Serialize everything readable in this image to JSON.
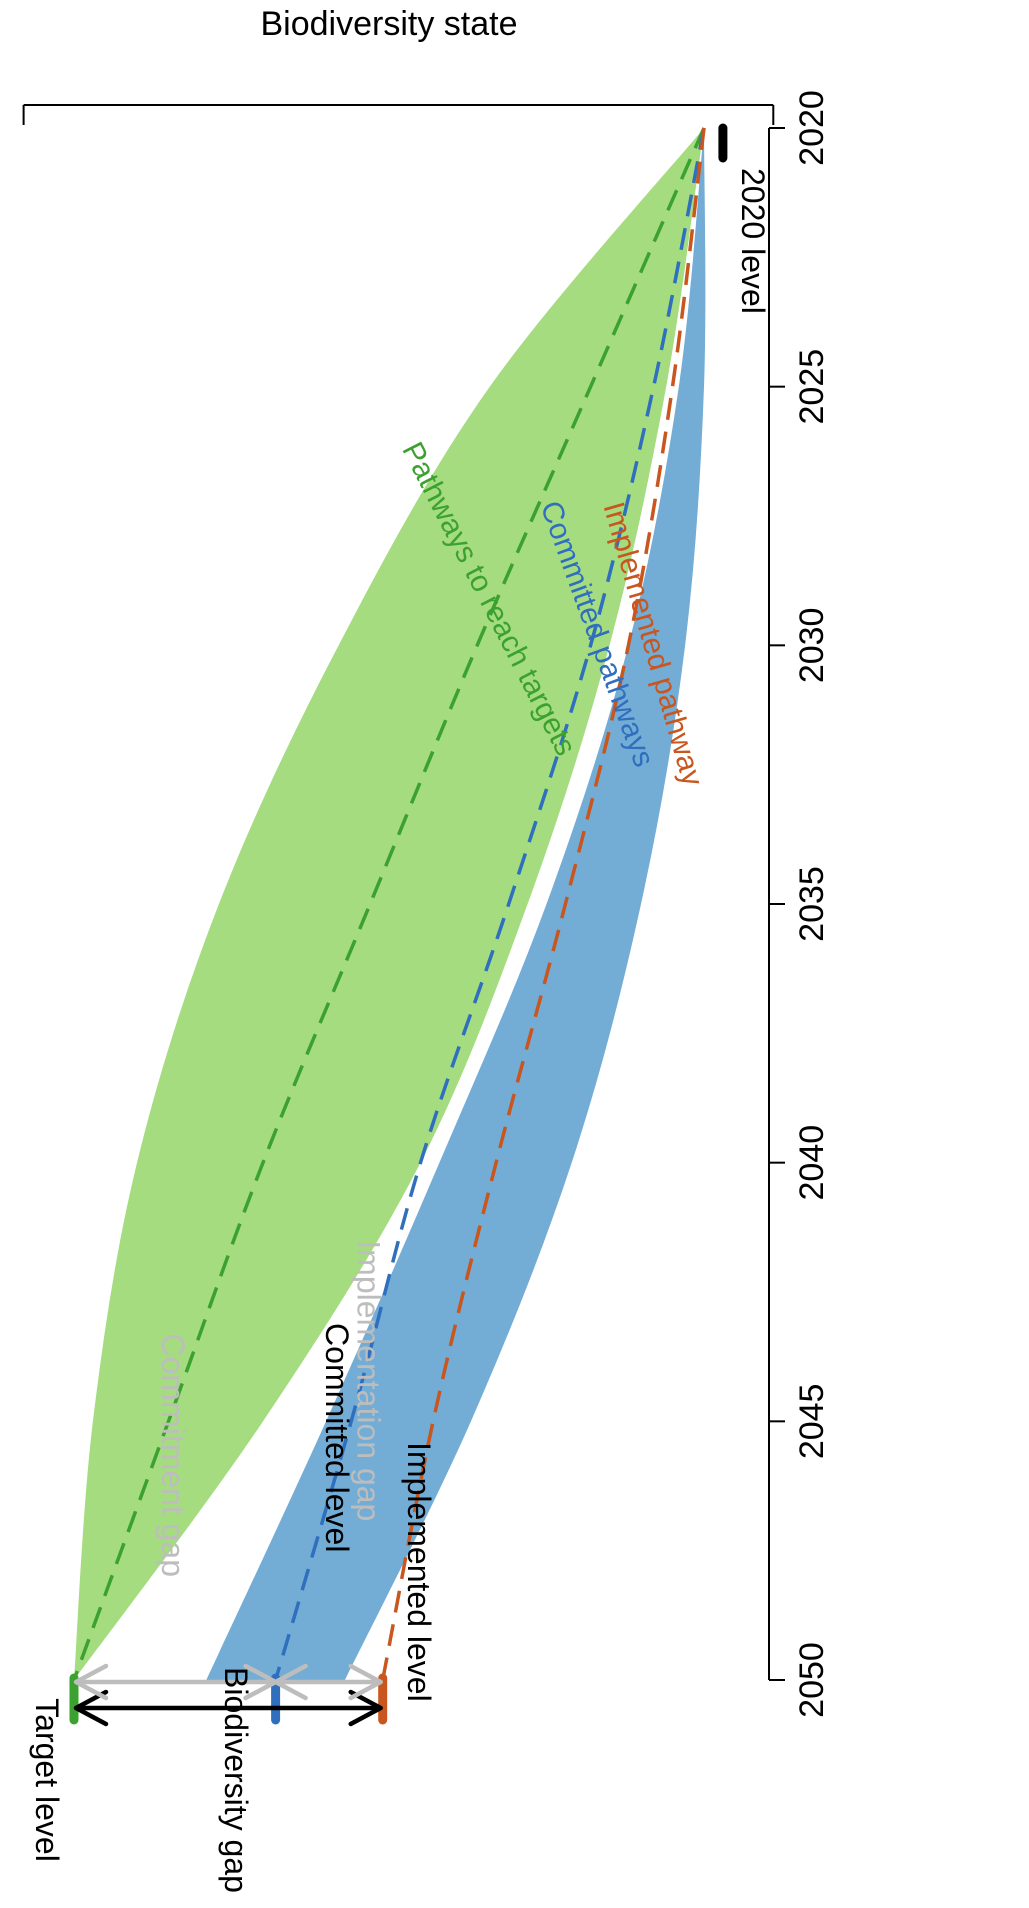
{
  "chart_data": {
    "type": "area",
    "title": "",
    "xlabel": "",
    "ylabel": "Biodiversity state",
    "xlim": [
      2020,
      2050
    ],
    "x_ticks": [
      "2020",
      "2025",
      "2030",
      "2035",
      "2040",
      "2045",
      "2050"
    ],
    "ylim": [
      0,
      1
    ],
    "grid": false,
    "orientation": "rotated-90-clockwise",
    "colors": {
      "target": "#3ba12f",
      "target_band": "#a6dc80",
      "committed": "#2f6fbd",
      "committed_band": "#5a9fcf",
      "implemented": "#c8561e",
      "gap_grey": "#bdbdbd",
      "gap_black": "#000000"
    },
    "levels": {
      "baseline": {
        "label": "2020 level",
        "year": 2020,
        "value": 0.0
      },
      "target": {
        "label": "Target level",
        "year": 2050,
        "value": 1.0
      },
      "committed": {
        "label": "Committed level",
        "year": 2050,
        "value": 0.68
      },
      "implemented": {
        "label": "Implemented level",
        "year": 2050,
        "value": 0.51
      }
    },
    "series": [
      {
        "name": "Pathways to reach targets",
        "kind": "band",
        "x": [
          2020,
          2025,
          2030,
          2035,
          2040,
          2045,
          2050
        ],
        "lower": [
          0,
          0.06,
          0.15,
          0.28,
          0.45,
          0.7,
          1.0
        ],
        "upper": [
          0,
          0.34,
          0.58,
          0.77,
          0.9,
          0.97,
          1.0
        ]
      },
      {
        "name": "",
        "kind": "line",
        "x": [
          2020,
          2025,
          2030,
          2035,
          2040,
          2045,
          2050
        ],
        "y": [
          0,
          0.18,
          0.36,
          0.53,
          0.7,
          0.85,
          1.0
        ]
      },
      {
        "name": "Committed pathways",
        "kind": "band",
        "x": [
          2020,
          2025,
          2030,
          2035,
          2040,
          2045,
          2050
        ],
        "lower": [
          0,
          0.0,
          0.03,
          0.1,
          0.21,
          0.37,
          0.57
        ],
        "upper": [
          0,
          0.04,
          0.12,
          0.25,
          0.42,
          0.6,
          0.79
        ]
      },
      {
        "name": "",
        "kind": "line",
        "x": [
          2020,
          2025,
          2030,
          2035,
          2040,
          2045,
          2050
        ],
        "y": [
          0,
          0.08,
          0.18,
          0.31,
          0.45,
          0.56,
          0.68
        ]
      },
      {
        "name": "Implemented pathway",
        "kind": "line",
        "x": [
          2020,
          2025,
          2030,
          2035,
          2040,
          2045,
          2050
        ],
        "y": [
          0,
          0.05,
          0.12,
          0.22,
          0.33,
          0.43,
          0.51
        ]
      }
    ],
    "annotations": {
      "biodiversity_gap": "Biodiversity gap",
      "commitment_gap": "Commitment gap",
      "implementation_gap": "Implementation gap"
    }
  }
}
